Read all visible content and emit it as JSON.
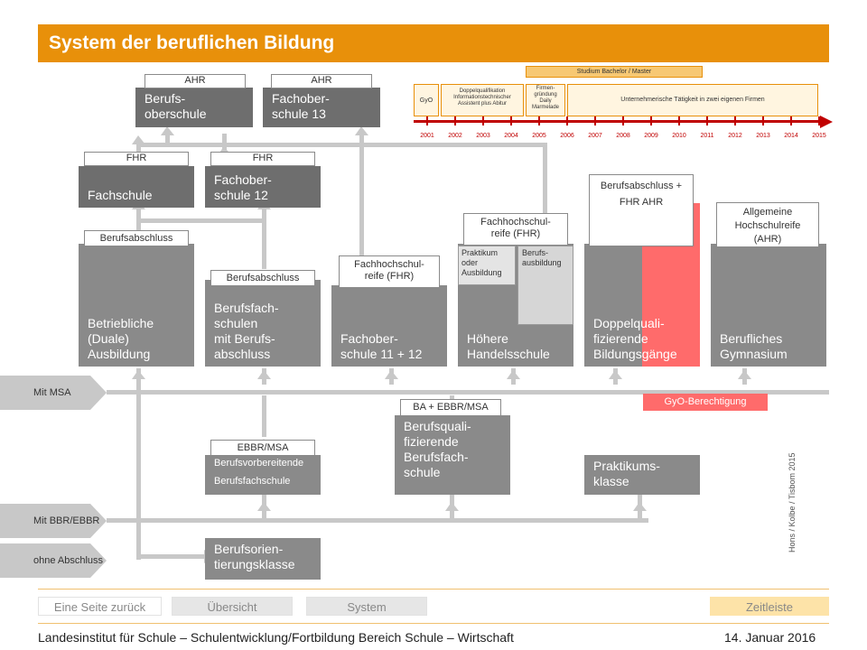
{
  "title": "System der beruflichen Bildung",
  "top": {
    "bos_label": "AHR",
    "bos": "Berufs-\noberschule",
    "fos13_label": "AHR",
    "fos13": "Fachober-\nschule 13"
  },
  "timeline": {
    "bar_label": "Studium Bachelor / Master",
    "gyo": "GyO",
    "dq": "Doppelqualifikation\nInformationstechnischer\nAssistent plus Abitur",
    "firm": "Firmen-\ngründung\nDaily\nMarmelade",
    "unternehmer": "Unternehmerische Tätigkeit in zwei eigenen Firmen",
    "years": [
      "2001",
      "2002",
      "2003",
      "2004",
      "2005",
      "2006",
      "2007",
      "2008",
      "2009",
      "2010",
      "2011",
      "2012",
      "2013",
      "2014",
      "2015"
    ]
  },
  "row2": {
    "fs_label": "FHR",
    "fs": "Fachschule",
    "fos12_label": "FHR",
    "fos12": "Fachober-\nschule 12"
  },
  "main": {
    "betr_label": "Berufsabschluss",
    "betr": "Betriebliche\n(Duale)\nAusbildung",
    "bfs_label": "Berufsabschluss",
    "bfs": "Berufsfach-\nschulen\nmit Berufs-\nabschluss",
    "fos1112_label": "Fachhochschul-\nreife (FHR)",
    "fos1112": "Fachober-\nschule 11 + 12",
    "hh_label": "Fachhochschul-\nreife (FHR)",
    "hh": "Höhere\nHandelsschule",
    "hh_sub1": "Praktikum\noder\nAusbildung",
    "hh_sub2": "Berufs-\nausbildung",
    "dq_label": "Berufsabschluss +\nFHR      AHR",
    "dq": "Doppelquali-\nfizierende\nBildungsgänge",
    "bg_label": "Allgemeine\nHochschulreife\n(AHR)",
    "bg": "Berufliches\nGymnasium"
  },
  "msa": {
    "tag": "Mit MSA",
    "gyo": "GyO-Berechtigung"
  },
  "lower": {
    "bvbfs_label": "EBBR/MSA",
    "bvbfs": "Berufsvorbereitende\nBerufsfachschule",
    "bq_label": "BA + EBBR/MSA",
    "bq": "Berufsquali-\nfizierende\nBerufsfach-\nschule",
    "pk": "Praktikums-\nklasse"
  },
  "bbr": {
    "tag": "Mit BBR/EBBR"
  },
  "ohne": {
    "tag": "ohne Abschluss",
    "box": "Berufsorien-\ntierungsklasse"
  },
  "credit": "Hons / Kolbe / Tisbom 2015",
  "nav": {
    "back": "Eine Seite zurück",
    "overview": "Übersicht",
    "system": "System",
    "timeline": "Zeitleiste"
  },
  "footer": {
    "institute": "Landesinstitut für Schule – Schulentwicklung/Fortbildung Bereich Schule – Wirtschaft",
    "date": "14. Januar 2016"
  },
  "colors": {
    "accent": "#e8900a",
    "box": "#8a8a8a",
    "highlight": "#ff6b6b"
  }
}
